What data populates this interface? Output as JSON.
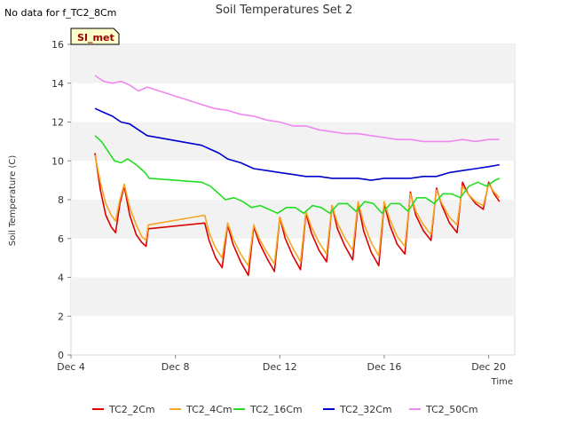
{
  "header": {
    "notice": "No data for f_TC2_8Cm",
    "site_badge": "SI_met"
  },
  "chart_data": {
    "type": "line",
    "title": "Soil Temperatures Set 2",
    "xlabel": "Time",
    "ylabel": "Soil Temperature (C)",
    "xlim": [
      "2023-12-04",
      "2023-12-21"
    ],
    "ylim": [
      0,
      16
    ],
    "x_ticks": [
      "Dec 4",
      "Dec 8",
      "Dec 12",
      "Dec 16",
      "Dec 20"
    ],
    "y_ticks": [
      0,
      2,
      4,
      6,
      8,
      10,
      12,
      14,
      16
    ],
    "grid": "horizontal bands",
    "legend": "bottom",
    "series": [
      {
        "name": "TC2_2Cm",
        "color": "#dd0000",
        "points": [
          [
            "2023-12-04T22:00",
            10.4
          ],
          [
            "2023-12-05T03:00",
            8.5
          ],
          [
            "2023-12-05T08:00",
            7.2
          ],
          [
            "2023-12-05T13:00",
            6.6
          ],
          [
            "2023-12-05T17:00",
            6.3
          ],
          [
            "2023-12-05T21:00",
            7.8
          ],
          [
            "2023-12-06T01:00",
            8.7
          ],
          [
            "2023-12-06T06:00",
            7.2
          ],
          [
            "2023-12-06T12:00",
            6.2
          ],
          [
            "2023-12-06T17:00",
            5.8
          ],
          [
            "2023-12-06T21:00",
            5.6
          ],
          [
            "2023-12-06T23:00",
            6.5
          ],
          [
            "2023-12-09T03:00",
            6.8
          ],
          [
            "2023-12-09T07:00",
            5.9
          ],
          [
            "2023-12-09T13:00",
            5.0
          ],
          [
            "2023-12-09T19:00",
            4.5
          ],
          [
            "2023-12-10T00:00",
            6.7
          ],
          [
            "2023-12-10T05:00",
            5.7
          ],
          [
            "2023-12-10T12:00",
            4.8
          ],
          [
            "2023-12-10T19:00",
            4.1
          ],
          [
            "2023-12-11T00:00",
            6.6
          ],
          [
            "2023-12-11T05:00",
            5.8
          ],
          [
            "2023-12-11T12:00",
            5.0
          ],
          [
            "2023-12-11T19:00",
            4.3
          ],
          [
            "2023-12-12T00:00",
            7.1
          ],
          [
            "2023-12-12T05:00",
            6.0
          ],
          [
            "2023-12-12T12:00",
            5.1
          ],
          [
            "2023-12-12T19:00",
            4.4
          ],
          [
            "2023-12-13T00:00",
            7.3
          ],
          [
            "2023-12-13T05:00",
            6.3
          ],
          [
            "2023-12-13T12:00",
            5.4
          ],
          [
            "2023-12-13T19:00",
            4.8
          ],
          [
            "2023-12-14T00:00",
            7.7
          ],
          [
            "2023-12-14T05:00",
            6.5
          ],
          [
            "2023-12-14T12:00",
            5.6
          ],
          [
            "2023-12-14T19:00",
            4.9
          ],
          [
            "2023-12-15T00:00",
            7.8
          ],
          [
            "2023-12-15T05:00",
            6.4
          ],
          [
            "2023-12-15T12:00",
            5.3
          ],
          [
            "2023-12-15T19:00",
            4.6
          ],
          [
            "2023-12-16T00:00",
            7.8
          ],
          [
            "2023-12-16T05:00",
            6.7
          ],
          [
            "2023-12-16T12:00",
            5.7
          ],
          [
            "2023-12-16T19:00",
            5.2
          ],
          [
            "2023-12-17T00:00",
            8.4
          ],
          [
            "2023-12-17T05:00",
            7.2
          ],
          [
            "2023-12-17T12:00",
            6.4
          ],
          [
            "2023-12-17T19:00",
            5.9
          ],
          [
            "2023-12-18T00:00",
            8.6
          ],
          [
            "2023-12-18T05:00",
            7.7
          ],
          [
            "2023-12-18T12:00",
            6.8
          ],
          [
            "2023-12-18T19:00",
            6.3
          ],
          [
            "2023-12-19T00:00",
            8.9
          ],
          [
            "2023-12-19T05:00",
            8.3
          ],
          [
            "2023-12-19T12:00",
            7.8
          ],
          [
            "2023-12-19T19:00",
            7.5
          ],
          [
            "2023-12-20T00:00",
            8.9
          ],
          [
            "2023-12-20T05:00",
            8.3
          ],
          [
            "2023-12-20T10:00",
            7.9
          ]
        ]
      },
      {
        "name": "TC2_4Cm",
        "color": "#f5a623",
        "points": [
          [
            "2023-12-04T22:00",
            10.3
          ],
          [
            "2023-12-05T03:00",
            8.9
          ],
          [
            "2023-12-05T08:00",
            7.8
          ],
          [
            "2023-12-05T13:00",
            7.2
          ],
          [
            "2023-12-05T17:00",
            6.9
          ],
          [
            "2023-12-05T21:00",
            8.0
          ],
          [
            "2023-12-06T01:00",
            8.8
          ],
          [
            "2023-12-06T06:00",
            7.6
          ],
          [
            "2023-12-06T12:00",
            6.7
          ],
          [
            "2023-12-06T17:00",
            6.1
          ],
          [
            "2023-12-06T21:00",
            5.9
          ],
          [
            "2023-12-06T23:00",
            6.7
          ],
          [
            "2023-12-09T03:00",
            7.2
          ],
          [
            "2023-12-09T07:00",
            6.3
          ],
          [
            "2023-12-09T13:00",
            5.5
          ],
          [
            "2023-12-09T19:00",
            5.0
          ],
          [
            "2023-12-10T00:00",
            6.8
          ],
          [
            "2023-12-10T05:00",
            6.0
          ],
          [
            "2023-12-10T12:00",
            5.2
          ],
          [
            "2023-12-10T19:00",
            4.6
          ],
          [
            "2023-12-11T00:00",
            6.7
          ],
          [
            "2023-12-11T05:00",
            6.0
          ],
          [
            "2023-12-11T12:00",
            5.3
          ],
          [
            "2023-12-11T19:00",
            4.7
          ],
          [
            "2023-12-12T00:00",
            7.1
          ],
          [
            "2023-12-12T05:00",
            6.3
          ],
          [
            "2023-12-12T12:00",
            5.5
          ],
          [
            "2023-12-12T19:00",
            4.8
          ],
          [
            "2023-12-13T00:00",
            7.4
          ],
          [
            "2023-12-13T05:00",
            6.6
          ],
          [
            "2023-12-13T12:00",
            5.8
          ],
          [
            "2023-12-13T19:00",
            5.2
          ],
          [
            "2023-12-14T00:00",
            7.7
          ],
          [
            "2023-12-14T05:00",
            6.8
          ],
          [
            "2023-12-14T12:00",
            6.0
          ],
          [
            "2023-12-14T19:00",
            5.4
          ],
          [
            "2023-12-15T00:00",
            7.9
          ],
          [
            "2023-12-15T05:00",
            6.8
          ],
          [
            "2023-12-15T12:00",
            5.8
          ],
          [
            "2023-12-15T19:00",
            5.1
          ],
          [
            "2023-12-16T00:00",
            7.9
          ],
          [
            "2023-12-16T05:00",
            7.0
          ],
          [
            "2023-12-16T12:00",
            6.1
          ],
          [
            "2023-12-16T19:00",
            5.6
          ],
          [
            "2023-12-17T00:00",
            8.3
          ],
          [
            "2023-12-17T05:00",
            7.4
          ],
          [
            "2023-12-17T12:00",
            6.7
          ],
          [
            "2023-12-17T19:00",
            6.2
          ],
          [
            "2023-12-18T00:00",
            8.5
          ],
          [
            "2023-12-18T05:00",
            7.8
          ],
          [
            "2023-12-18T12:00",
            7.1
          ],
          [
            "2023-12-18T19:00",
            6.7
          ],
          [
            "2023-12-19T00:00",
            8.7
          ],
          [
            "2023-12-19T05:00",
            8.3
          ],
          [
            "2023-12-19T12:00",
            7.9
          ],
          [
            "2023-12-19T19:00",
            7.7
          ],
          [
            "2023-12-20T00:00",
            8.8
          ],
          [
            "2023-12-20T05:00",
            8.4
          ],
          [
            "2023-12-20T10:00",
            8.1
          ]
        ]
      },
      {
        "name": "TC2_16Cm",
        "color": "#22dd22",
        "points": [
          [
            "2023-12-04T22:00",
            11.3
          ],
          [
            "2023-12-05T04:00",
            11.0
          ],
          [
            "2023-12-05T10:00",
            10.5
          ],
          [
            "2023-12-05T16:00",
            10.0
          ],
          [
            "2023-12-05T22:00",
            9.9
          ],
          [
            "2023-12-06T04:00",
            10.1
          ],
          [
            "2023-12-06T12:00",
            9.8
          ],
          [
            "2023-12-06T20:00",
            9.4
          ],
          [
            "2023-12-07T00:00",
            9.1
          ],
          [
            "2023-12-09T00:00",
            8.9
          ],
          [
            "2023-12-09T08:00",
            8.7
          ],
          [
            "2023-12-09T16:00",
            8.3
          ],
          [
            "2023-12-09T22:00",
            8.0
          ],
          [
            "2023-12-10T06:00",
            8.1
          ],
          [
            "2023-12-10T14:00",
            7.9
          ],
          [
            "2023-12-10T22:00",
            7.6
          ],
          [
            "2023-12-11T06:00",
            7.7
          ],
          [
            "2023-12-11T14:00",
            7.5
          ],
          [
            "2023-12-11T22:00",
            7.3
          ],
          [
            "2023-12-12T06:00",
            7.6
          ],
          [
            "2023-12-12T14:00",
            7.6
          ],
          [
            "2023-12-12T22:00",
            7.3
          ],
          [
            "2023-12-13T06:00",
            7.7
          ],
          [
            "2023-12-13T14:00",
            7.6
          ],
          [
            "2023-12-13T22:00",
            7.3
          ],
          [
            "2023-12-14T06:00",
            7.8
          ],
          [
            "2023-12-14T14:00",
            7.8
          ],
          [
            "2023-12-14T22:00",
            7.4
          ],
          [
            "2023-12-15T06:00",
            7.9
          ],
          [
            "2023-12-15T14:00",
            7.8
          ],
          [
            "2023-12-15T22:00",
            7.3
          ],
          [
            "2023-12-16T06:00",
            7.8
          ],
          [
            "2023-12-16T14:00",
            7.8
          ],
          [
            "2023-12-16T22:00",
            7.4
          ],
          [
            "2023-12-17T06:00",
            8.1
          ],
          [
            "2023-12-17T14:00",
            8.1
          ],
          [
            "2023-12-17T22:00",
            7.8
          ],
          [
            "2023-12-18T06:00",
            8.3
          ],
          [
            "2023-12-18T14:00",
            8.3
          ],
          [
            "2023-12-18T22:00",
            8.1
          ],
          [
            "2023-12-19T06:00",
            8.7
          ],
          [
            "2023-12-19T14:00",
            8.9
          ],
          [
            "2023-12-19T22:00",
            8.7
          ],
          [
            "2023-12-20T06:00",
            9.0
          ],
          [
            "2023-12-20T10:00",
            9.1
          ]
        ]
      },
      {
        "name": "TC2_32Cm",
        "color": "#0000cc",
        "points": [
          [
            "2023-12-04T22:00",
            12.7
          ],
          [
            "2023-12-05T06:00",
            12.5
          ],
          [
            "2023-12-05T14:00",
            12.3
          ],
          [
            "2023-12-05T22:00",
            12.0
          ],
          [
            "2023-12-06T06:00",
            11.9
          ],
          [
            "2023-12-06T14:00",
            11.6
          ],
          [
            "2023-12-06T22:00",
            11.3
          ],
          [
            "2023-12-09T00:00",
            10.8
          ],
          [
            "2023-12-09T08:00",
            10.6
          ],
          [
            "2023-12-09T16:00",
            10.4
          ],
          [
            "2023-12-10T00:00",
            10.1
          ],
          [
            "2023-12-10T12:00",
            9.9
          ],
          [
            "2023-12-11T00:00",
            9.6
          ],
          [
            "2023-12-11T12:00",
            9.5
          ],
          [
            "2023-12-12T00:00",
            9.4
          ],
          [
            "2023-12-12T12:00",
            9.3
          ],
          [
            "2023-12-13T00:00",
            9.2
          ],
          [
            "2023-12-13T12:00",
            9.2
          ],
          [
            "2023-12-14T00:00",
            9.1
          ],
          [
            "2023-12-14T12:00",
            9.1
          ],
          [
            "2023-12-15T00:00",
            9.1
          ],
          [
            "2023-12-15T12:00",
            9.0
          ],
          [
            "2023-12-16T00:00",
            9.1
          ],
          [
            "2023-12-16T12:00",
            9.1
          ],
          [
            "2023-12-17T00:00",
            9.1
          ],
          [
            "2023-12-17T12:00",
            9.2
          ],
          [
            "2023-12-18T00:00",
            9.2
          ],
          [
            "2023-12-18T12:00",
            9.4
          ],
          [
            "2023-12-19T00:00",
            9.5
          ],
          [
            "2023-12-19T12:00",
            9.6
          ],
          [
            "2023-12-20T00:00",
            9.7
          ],
          [
            "2023-12-20T10:00",
            9.8
          ]
        ]
      },
      {
        "name": "TC2_50Cm",
        "color": "#ee88ee",
        "points": [
          [
            "2023-12-04T22:00",
            14.4
          ],
          [
            "2023-12-05T06:00",
            14.1
          ],
          [
            "2023-12-05T14:00",
            14.0
          ],
          [
            "2023-12-05T22:00",
            14.1
          ],
          [
            "2023-12-06T06:00",
            13.9
          ],
          [
            "2023-12-06T14:00",
            13.6
          ],
          [
            "2023-12-06T22:00",
            13.8
          ],
          [
            "2023-12-09T00:00",
            12.9
          ],
          [
            "2023-12-09T12:00",
            12.7
          ],
          [
            "2023-12-10T00:00",
            12.6
          ],
          [
            "2023-12-10T12:00",
            12.4
          ],
          [
            "2023-12-11T00:00",
            12.3
          ],
          [
            "2023-12-11T12:00",
            12.1
          ],
          [
            "2023-12-12T00:00",
            12.0
          ],
          [
            "2023-12-12T12:00",
            11.8
          ],
          [
            "2023-12-13T00:00",
            11.8
          ],
          [
            "2023-12-13T12:00",
            11.6
          ],
          [
            "2023-12-14T00:00",
            11.5
          ],
          [
            "2023-12-14T12:00",
            11.4
          ],
          [
            "2023-12-15T00:00",
            11.4
          ],
          [
            "2023-12-15T12:00",
            11.3
          ],
          [
            "2023-12-16T00:00",
            11.2
          ],
          [
            "2023-12-16T12:00",
            11.1
          ],
          [
            "2023-12-17T00:00",
            11.1
          ],
          [
            "2023-12-17T12:00",
            11.0
          ],
          [
            "2023-12-18T00:00",
            11.0
          ],
          [
            "2023-12-18T12:00",
            11.0
          ],
          [
            "2023-12-19T00:00",
            11.1
          ],
          [
            "2023-12-19T12:00",
            11.0
          ],
          [
            "2023-12-20T00:00",
            11.1
          ],
          [
            "2023-12-20T10:00",
            11.1
          ]
        ]
      }
    ]
  }
}
